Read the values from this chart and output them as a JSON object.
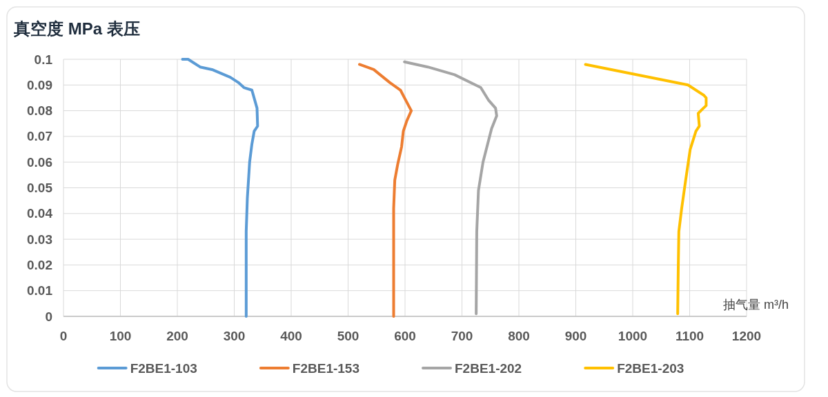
{
  "chart_data": {
    "type": "line",
    "ylabel": "真空度 MPa 表压",
    "xlabel": "抽气量 m³/h",
    "xlim": [
      0,
      1200
    ],
    "xticks": [
      0,
      100,
      200,
      300,
      400,
      500,
      600,
      700,
      800,
      900,
      1000,
      1100,
      1200
    ],
    "ylim": [
      0,
      0.1
    ],
    "yticks": [
      0,
      0.01,
      0.02,
      0.03,
      0.04,
      0.05,
      0.06,
      0.07,
      0.08,
      0.09,
      0.1
    ],
    "grid": true,
    "legend": "bottom",
    "marker": "none",
    "line_style": "solid",
    "series": [
      {
        "name": "F2BE1-103",
        "color": "#5b9bd5",
        "x": [
          209,
          219,
          240,
          261,
          293,
          307,
          317,
          331,
          340,
          341,
          335,
          331,
          327,
          323,
          321,
          321
        ],
        "values": [
          0.1,
          0.1,
          0.097,
          0.096,
          0.093,
          0.091,
          0.089,
          0.088,
          0.081,
          0.074,
          0.072,
          0.067,
          0.06,
          0.046,
          0.033,
          0
        ]
      },
      {
        "name": "F2BE1-153",
        "color": "#ed7d31",
        "x": [
          520,
          545,
          573,
          592,
          599,
          611,
          603,
          597,
          594,
          587,
          582,
          580,
          580
        ],
        "values": [
          0.098,
          0.096,
          0.091,
          0.088,
          0.085,
          0.08,
          0.076,
          0.072,
          0.066,
          0.059,
          0.053,
          0.042,
          0
        ]
      },
      {
        "name": "F2BE1-202",
        "color": "#a5a5a5",
        "x": [
          599,
          640,
          687,
          733,
          747,
          759,
          761,
          752,
          737,
          729,
          726,
          725
        ],
        "values": [
          0.099,
          0.097,
          0.094,
          0.089,
          0.084,
          0.081,
          0.078,
          0.073,
          0.06,
          0.049,
          0.033,
          0.001
        ]
      },
      {
        "name": "F2BE1-203",
        "color": "#ffc000",
        "x": [
          917,
          1097,
          1125,
          1129,
          1129,
          1115,
          1117,
          1111,
          1101,
          1093,
          1086,
          1081,
          1080,
          1079
        ],
        "values": [
          0.098,
          0.09,
          0.086,
          0.085,
          0.082,
          0.079,
          0.074,
          0.072,
          0.065,
          0.053,
          0.042,
          0.033,
          0.019,
          0.001
        ]
      }
    ]
  }
}
